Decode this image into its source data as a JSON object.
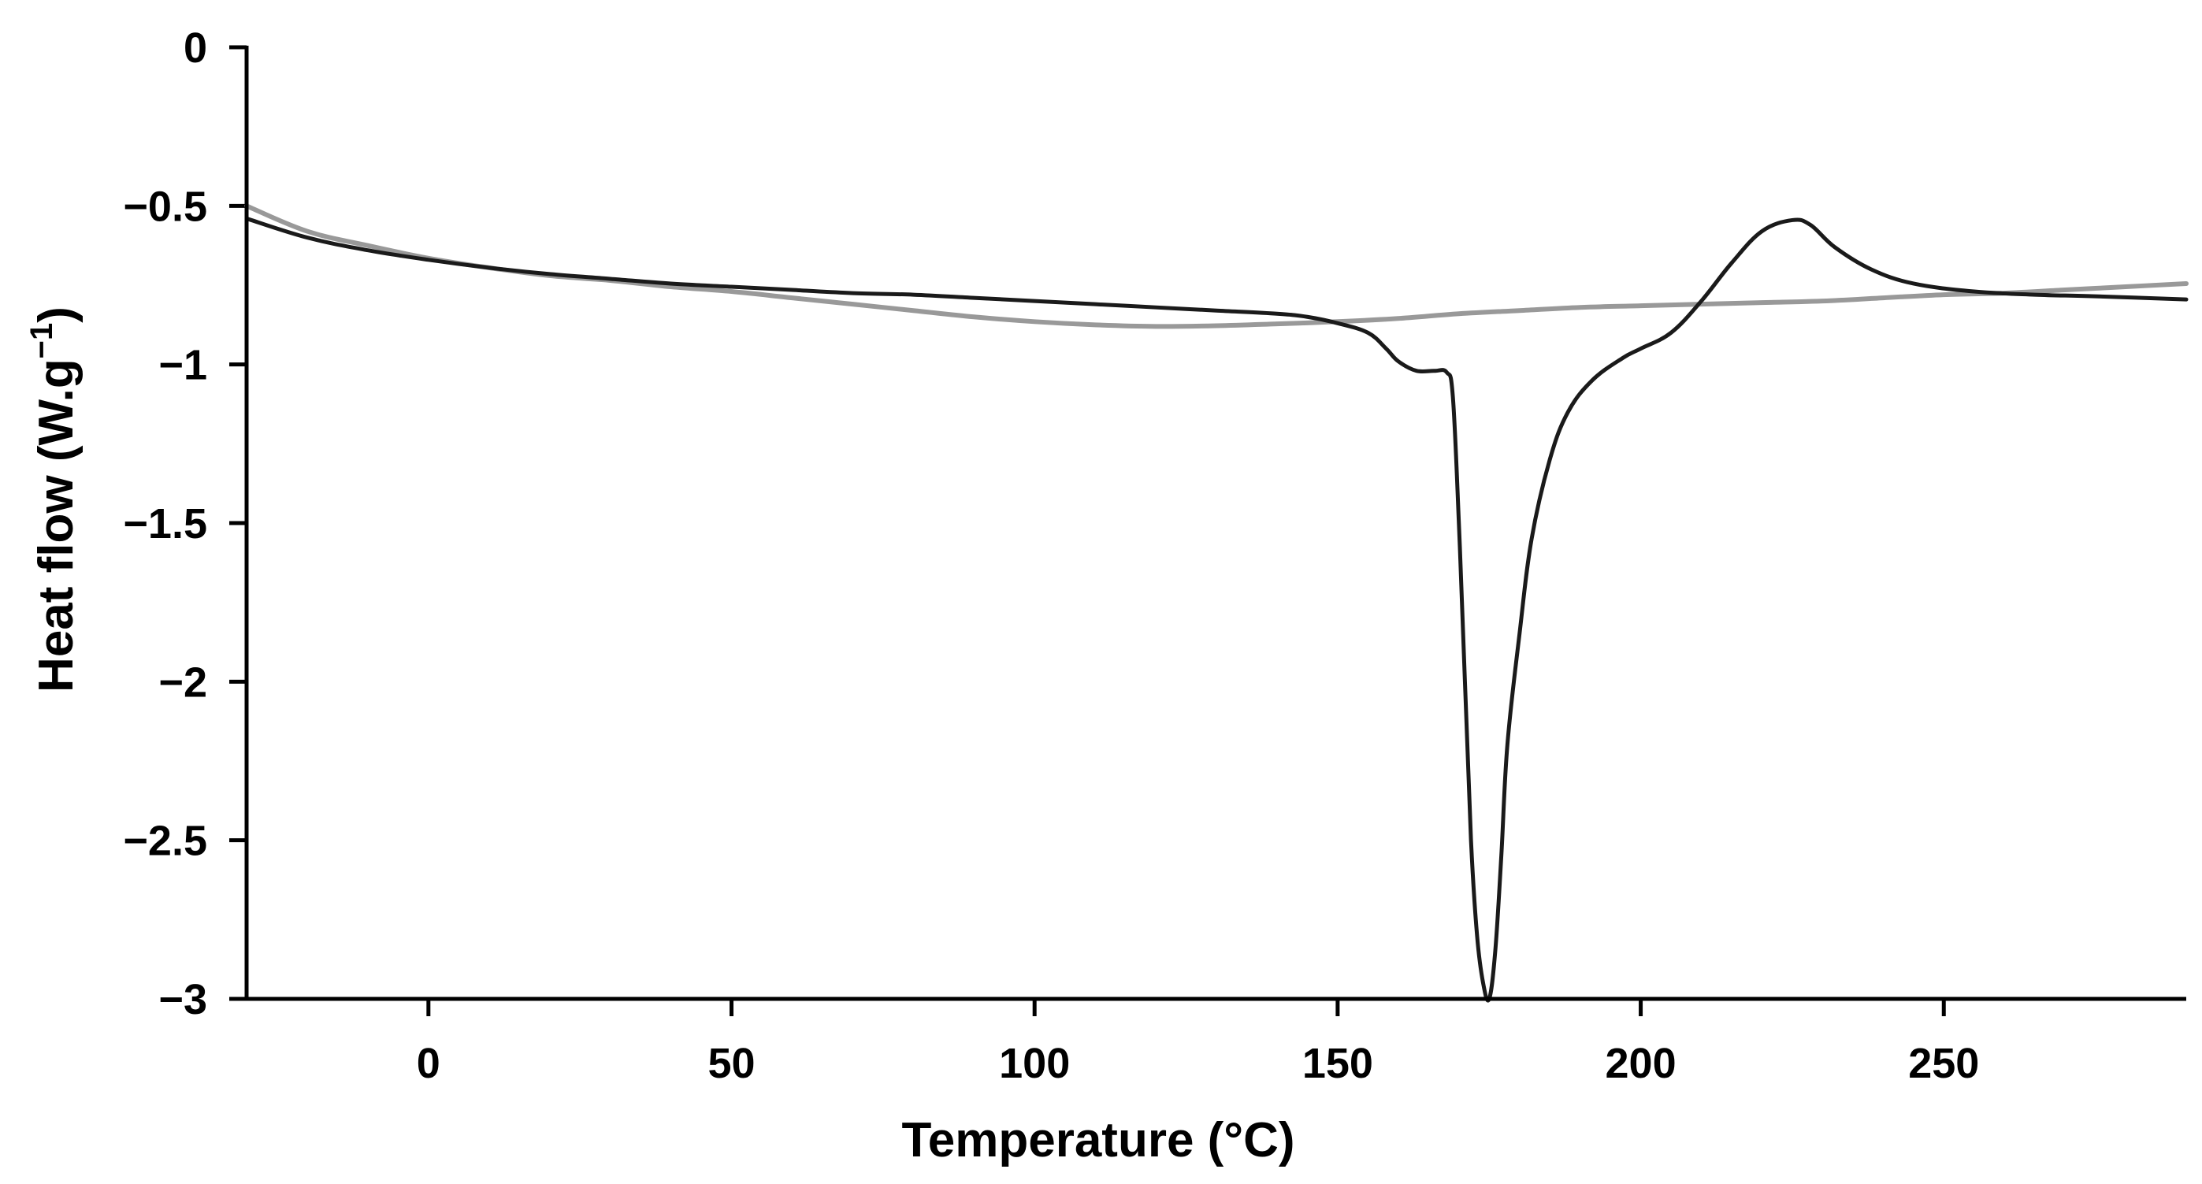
{
  "chart_data": {
    "type": "line",
    "title": "",
    "xlabel": "Temperature (°C)",
    "ylabel_main": "Heat flow (W.g",
    "ylabel_sup": "−1",
    "ylabel_close": ")",
    "xlim": [
      -30,
      290
    ],
    "ylim": [
      -3,
      0
    ],
    "grid": false,
    "legend": "none",
    "x_ticks": [
      {
        "value": 0,
        "label": "0"
      },
      {
        "value": 50,
        "label": "50"
      },
      {
        "value": 100,
        "label": "100"
      },
      {
        "value": 150,
        "label": "150"
      },
      {
        "value": 200,
        "label": "200"
      },
      {
        "value": 250,
        "label": "250"
      }
    ],
    "y_ticks": [
      {
        "value": 0,
        "label": "0"
      },
      {
        "value": -0.5,
        "label": "−0.5"
      },
      {
        "value": -1,
        "label": "−1"
      },
      {
        "value": -1.5,
        "label": "−1.5"
      },
      {
        "value": -2,
        "label": "−2"
      },
      {
        "value": -2.5,
        "label": "−2.5"
      },
      {
        "value": -3,
        "label": "−3"
      }
    ],
    "series": [
      {
        "name": "dark curve",
        "color": "#1a1a1a",
        "points": [
          [
            -30,
            -0.54
          ],
          [
            -20,
            -0.6
          ],
          [
            -10,
            -0.64
          ],
          [
            0,
            -0.67
          ],
          [
            10,
            -0.695
          ],
          [
            20,
            -0.715
          ],
          [
            30,
            -0.73
          ],
          [
            40,
            -0.745
          ],
          [
            50,
            -0.755
          ],
          [
            60,
            -0.765
          ],
          [
            70,
            -0.775
          ],
          [
            80,
            -0.78
          ],
          [
            90,
            -0.79
          ],
          [
            100,
            -0.8
          ],
          [
            110,
            -0.81
          ],
          [
            120,
            -0.82
          ],
          [
            130,
            -0.83
          ],
          [
            140,
            -0.84
          ],
          [
            145,
            -0.85
          ],
          [
            150,
            -0.87
          ],
          [
            155,
            -0.9
          ],
          [
            158,
            -0.95
          ],
          [
            160,
            -0.99
          ],
          [
            163,
            -1.02
          ],
          [
            166,
            -1.02
          ],
          [
            168,
            -1.025
          ],
          [
            169,
            -1.1
          ],
          [
            170,
            -1.5
          ],
          [
            171,
            -2.0
          ],
          [
            172,
            -2.5
          ],
          [
            173,
            -2.8
          ],
          [
            174,
            -2.95
          ],
          [
            175,
            -3.0
          ],
          [
            176,
            -2.85
          ],
          [
            177,
            -2.55
          ],
          [
            178,
            -2.2
          ],
          [
            180,
            -1.85
          ],
          [
            182,
            -1.55
          ],
          [
            185,
            -1.3
          ],
          [
            188,
            -1.15
          ],
          [
            192,
            -1.05
          ],
          [
            197,
            -0.98
          ],
          [
            200,
            -0.95
          ],
          [
            205,
            -0.9
          ],
          [
            210,
            -0.8
          ],
          [
            215,
            -0.68
          ],
          [
            220,
            -0.58
          ],
          [
            225,
            -0.545
          ],
          [
            228,
            -0.56
          ],
          [
            232,
            -0.63
          ],
          [
            238,
            -0.7
          ],
          [
            245,
            -0.745
          ],
          [
            255,
            -0.77
          ],
          [
            265,
            -0.78
          ],
          [
            275,
            -0.785
          ],
          [
            290,
            -0.795
          ]
        ]
      },
      {
        "name": "gray curve",
        "color": "#999999",
        "points": [
          [
            -30,
            -0.5
          ],
          [
            -20,
            -0.58
          ],
          [
            -10,
            -0.625
          ],
          [
            0,
            -0.665
          ],
          [
            10,
            -0.695
          ],
          [
            20,
            -0.72
          ],
          [
            30,
            -0.735
          ],
          [
            40,
            -0.755
          ],
          [
            50,
            -0.77
          ],
          [
            60,
            -0.79
          ],
          [
            70,
            -0.81
          ],
          [
            80,
            -0.83
          ],
          [
            90,
            -0.85
          ],
          [
            100,
            -0.865
          ],
          [
            110,
            -0.875
          ],
          [
            120,
            -0.88
          ],
          [
            130,
            -0.878
          ],
          [
            140,
            -0.872
          ],
          [
            150,
            -0.865
          ],
          [
            160,
            -0.855
          ],
          [
            170,
            -0.84
          ],
          [
            180,
            -0.83
          ],
          [
            190,
            -0.82
          ],
          [
            200,
            -0.815
          ],
          [
            210,
            -0.81
          ],
          [
            220,
            -0.805
          ],
          [
            230,
            -0.8
          ],
          [
            240,
            -0.79
          ],
          [
            250,
            -0.78
          ],
          [
            260,
            -0.775
          ],
          [
            270,
            -0.765
          ],
          [
            280,
            -0.755
          ],
          [
            290,
            -0.745
          ]
        ]
      }
    ]
  }
}
